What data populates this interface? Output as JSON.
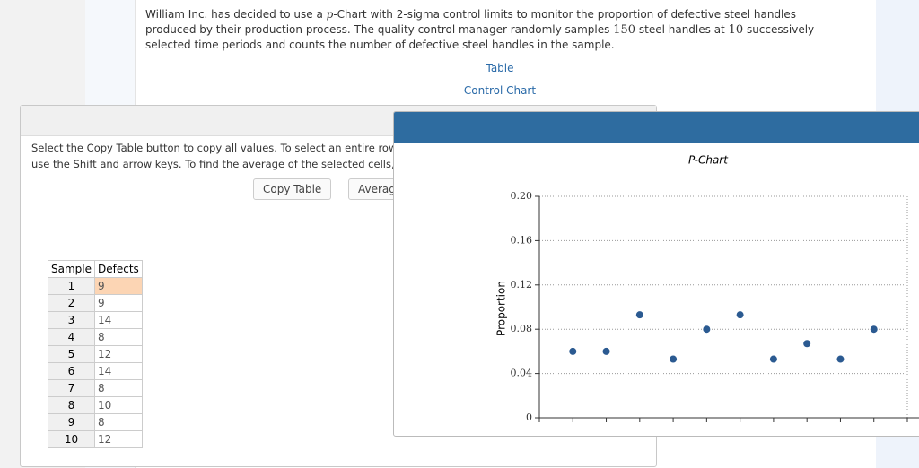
{
  "problem": {
    "text": [
      "William Inc. has decided to use a ",
      "p",
      "-Chart with 2-sigma control limits to monitor the proportion of defective steel handles produced by their production process. The quality control manager randomly samples ",
      "150",
      " steel handles at ",
      "10",
      " successively selected time periods and counts the number of defective steel handles in the sample."
    ],
    "links": [
      "Table",
      "Control Chart"
    ]
  },
  "dialog": {
    "instructions": [
      "Select the Copy Table button to copy all values. To select an entire row or co",
      "use the Shift and arrow keys. To find the average of the selected cells, select"
    ],
    "buttons": [
      "Copy Table",
      "Average"
    ],
    "table": {
      "header": [
        "Sample",
        "Defects"
      ],
      "rows": [
        [
          1,
          9
        ],
        [
          2,
          9
        ],
        [
          3,
          14
        ],
        [
          4,
          8
        ],
        [
          5,
          12
        ],
        [
          6,
          14
        ],
        [
          7,
          8
        ],
        [
          8,
          10
        ],
        [
          9,
          8
        ],
        [
          10,
          12
        ]
      ]
    }
  },
  "chart_data": {
    "type": "scatter",
    "title": "P-Chart",
    "y_label": "Proportion",
    "values": [
      0.06,
      0.06,
      0.093,
      0.053,
      0.08,
      0.093,
      0.053,
      0.067,
      0.053,
      0.08
    ],
    "color": "#2b5a91",
    "ylim": [
      0,
      0.2
    ],
    "yticks": [
      0,
      0.04,
      0.08,
      0.12,
      0.16,
      {
        "value": 0.2,
        "label": "0.20"
      }
    ],
    "grid": true
  }
}
